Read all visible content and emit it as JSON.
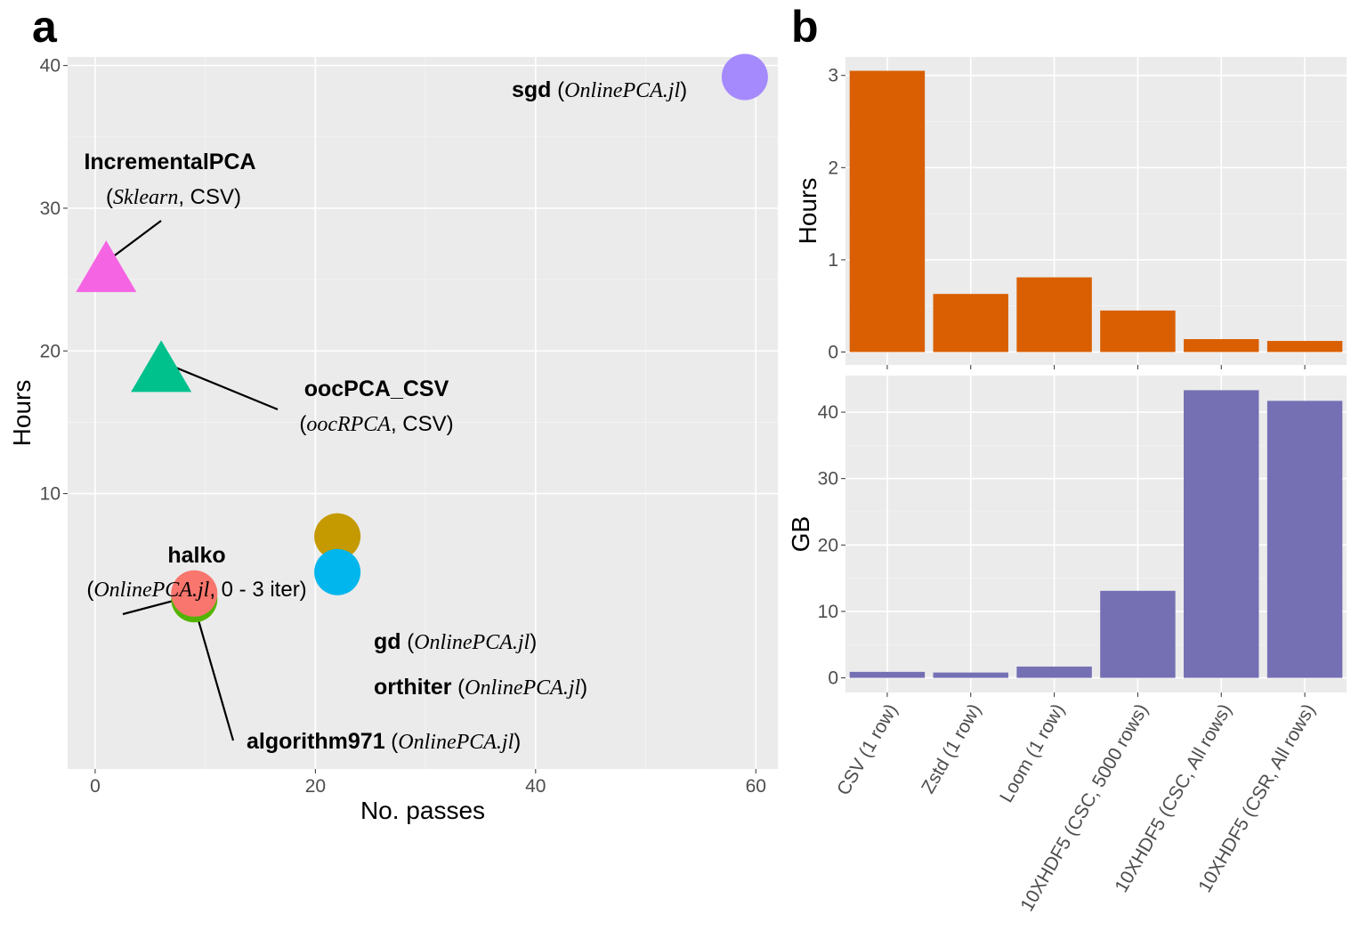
{
  "panel_labels": {
    "a": "a",
    "b": "b"
  },
  "chart_data": [
    {
      "type": "scatter",
      "panel": "a",
      "xlabel": "No. passes",
      "ylabel": "Hours",
      "xlim": [
        -2.5,
        62
      ],
      "ylim": [
        -9.3,
        40.6
      ],
      "x_ticks": [
        0,
        20,
        40,
        60
      ],
      "y_ticks": [
        10,
        20,
        30,
        40
      ],
      "grid": true,
      "points": [
        {
          "name": "sgd",
          "x": 59,
          "y": 39.2,
          "shape": "circle",
          "color": "#a58afe"
        },
        {
          "name": "IncrementalPCA",
          "x": 1,
          "y": 25.5,
          "shape": "triangle",
          "color": "#f565e3"
        },
        {
          "name": "oocPCA_CSV",
          "x": 6,
          "y": 18.5,
          "shape": "triangle",
          "color": "#00c08c"
        },
        {
          "name": "gd",
          "x": 22,
          "y": 7.0,
          "shape": "circle",
          "color": "#c49a00"
        },
        {
          "name": "orthiter",
          "x": 22,
          "y": 4.5,
          "shape": "circle",
          "color": "#00b6ec"
        },
        {
          "name": "algorithm971",
          "x": 9,
          "y": 2.6,
          "shape": "circle",
          "color": "#53b400"
        },
        {
          "name": "halko",
          "x": 9,
          "y": 3.0,
          "shape": "circle",
          "color": "#f8766d"
        }
      ],
      "annotations": [
        {
          "bold": "sgd",
          "detail": [
            {
              "t": "(",
              "i": false
            },
            {
              "t": "OnlinePCA.jl",
              "i": true
            },
            {
              "t": ")",
              "i": false
            }
          ]
        },
        {
          "bold": "IncrementalPCA",
          "detail": [
            {
              "t": "(",
              "i": false
            },
            {
              "t": "Sklearn",
              "i": true
            },
            {
              "t": ", CSV)",
              "i": false
            }
          ]
        },
        {
          "bold": "oocPCA_CSV",
          "detail": [
            {
              "t": "(",
              "i": false
            },
            {
              "t": "oocRPCA",
              "i": true
            },
            {
              "t": ", CSV)",
              "i": false
            }
          ]
        },
        {
          "bold": "halko",
          "detail": [
            {
              "t": "(",
              "i": false
            },
            {
              "t": "OnlinePCA.jl",
              "i": true
            },
            {
              "t": ", 0 - 3 iter)",
              "i": false
            }
          ]
        },
        {
          "bold": "gd",
          "detail": [
            {
              "t": "(",
              "i": false
            },
            {
              "t": "OnlinePCA.jl",
              "i": true
            },
            {
              "t": ")",
              "i": false
            }
          ]
        },
        {
          "bold": "orthiter",
          "detail": [
            {
              "t": "(",
              "i": false
            },
            {
              "t": "OnlinePCA.jl",
              "i": true
            },
            {
              "t": ")",
              "i": false
            }
          ]
        },
        {
          "bold": "algorithm971",
          "detail": [
            {
              "t": "(",
              "i": false
            },
            {
              "t": "OnlinePCA.jl",
              "i": true
            },
            {
              "t": ")",
              "i": false
            }
          ]
        }
      ]
    },
    {
      "type": "bar",
      "panel": "b-top",
      "ylabel": "Hours",
      "color": "#d95f02",
      "categories": [
        "CSV (1 row)",
        "Zstd (1 row)",
        "Loom (1 row)",
        "10XHDF5 (CSC, 5000 rows)",
        "10XHDF5 (CSC, All rows)",
        "10XHDF5 (CSR, All rows)"
      ],
      "values": [
        3.05,
        0.63,
        0.81,
        0.45,
        0.14,
        0.12
      ],
      "ylim": [
        -0.14,
        3.2
      ],
      "y_ticks": [
        0,
        1,
        2,
        3
      ],
      "grid": true
    },
    {
      "type": "bar",
      "panel": "b-bottom",
      "ylabel": "GB",
      "color": "#7570b3",
      "categories": [
        "CSV (1 row)",
        "Zstd (1 row)",
        "Loom (1 row)",
        "10XHDF5 (CSC, 5000 rows)",
        "10XHDF5 (CSC, All rows)",
        "10XHDF5 (CSR, All rows)"
      ],
      "values": [
        0.9,
        0.8,
        1.7,
        13.1,
        43.3,
        41.7
      ],
      "ylim": [
        -2.2,
        45.5
      ],
      "y_ticks": [
        0,
        10,
        20,
        30,
        40
      ],
      "grid": true
    }
  ]
}
